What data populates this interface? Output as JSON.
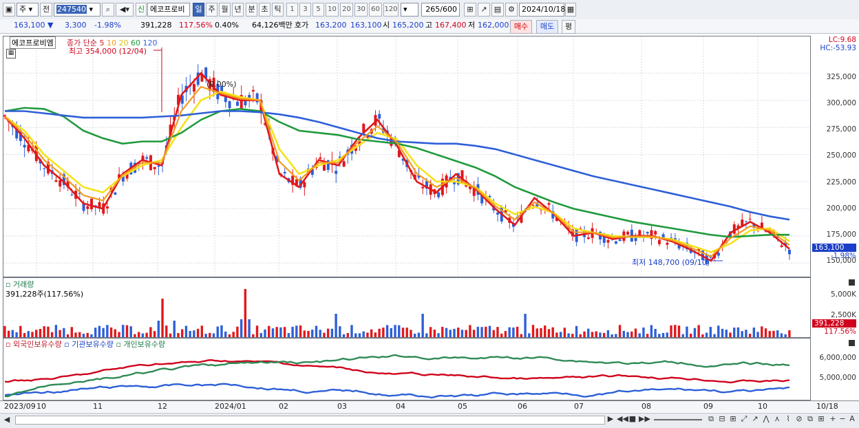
{
  "toolbar": {
    "mode": "주",
    "prev_label": "전",
    "code": "247540",
    "stock_name": "에코프로비",
    "new_badge": "신",
    "period_buttons": [
      "일",
      "주",
      "월",
      "년",
      "분",
      "초",
      "틱"
    ],
    "active_period": "일",
    "interval_buttons": [
      "1",
      "3",
      "5",
      "10",
      "20",
      "30",
      "60",
      "120"
    ],
    "count": "265",
    "count_max": "/600",
    "date": "2024/10/18"
  },
  "quote": {
    "price": "163,100",
    "change": "3,300",
    "change_pct": "-1.98%",
    "volume": "391,228",
    "volume_ratio": "117.56%",
    "turnover": "0.40%",
    "amount": "64,126백만",
    "bid_label": "호가",
    "ask": "163,200",
    "bid": "163,100",
    "open_label": "시",
    "open": "165,200",
    "high_label": "고",
    "high": "167,400",
    "low_label": "저",
    "low": "162,000",
    "buy_button": "매수",
    "sell_button": "매도",
    "flat_button": "평"
  },
  "price_pane": {
    "title": "에코프로비엠",
    "legend": {
      "close": "종가 단순",
      "ma5": "5",
      "ma10": "10",
      "ma20": "20",
      "ma60": "60",
      "ma120": "120"
    },
    "max_note": "최고 354,000 (12/04)",
    "min_note": "최저 148,700 (09/10)",
    "cap_note": "(0.00%)",
    "lc": "LC:9.68",
    "hc": "HC:-53.93",
    "y_ticks": [
      "325,000",
      "300,000",
      "275,000",
      "250,000",
      "225,000",
      "200,000",
      "175,000",
      "150,000"
    ],
    "last_price": "163,100",
    "last_pct": "-1.98%"
  },
  "volume_pane": {
    "title": "거래량",
    "value": "391,228주(117.56%)",
    "y_ticks": [
      "5,000K",
      "2,500K"
    ],
    "last_volume": "391,228",
    "last_pct": "117.56%"
  },
  "holdings_pane": {
    "legend": [
      "외국인보유수량",
      "기관보유수량",
      "개인보유수량"
    ],
    "y_ticks": [
      "6,000,000",
      "5,000,000"
    ]
  },
  "x_axis": {
    "labels": [
      "2023/09",
      "10",
      "11",
      "12",
      "2024/01",
      "02",
      "03",
      "04",
      "05",
      "06",
      "07",
      "08",
      "09",
      "10",
      "10/18"
    ]
  },
  "colors": {
    "ma5": "#e0181b",
    "ma10": "#f39a1f",
    "ma20": "#f5e21a",
    "ma60": "#1f9a3c",
    "ma120": "#2d5fd8",
    "up": "#e0181b",
    "down": "#2d5fd8"
  },
  "chart_data": [
    {
      "type": "line",
      "title": "에코프로비엠",
      "ylim": [
        140000,
        355000
      ],
      "series": [
        {
          "name": "5",
          "values": [
            285000,
            265000,
            240000,
            225000,
            205000,
            200000,
            232000,
            245000,
            240000,
            305000,
            325000,
            305000,
            300000,
            300000,
            232000,
            220000,
            245000,
            240000,
            265000,
            282000,
            258000,
            225000,
            215000,
            232000,
            218000,
            200000,
            185000,
            210000,
            195000,
            175000,
            178000,
            172000,
            175000,
            175000,
            170000,
            162000,
            152000,
            178000,
            188000,
            178000,
            163000
          ]
        },
        {
          "name": "20",
          "values": [
            285000,
            272000,
            250000,
            235000,
            220000,
            215000,
            230000,
            240000,
            245000,
            275000,
            300000,
            308000,
            303000,
            300000,
            255000,
            232000,
            240000,
            245000,
            258000,
            270000,
            264000,
            240000,
            225000,
            225000,
            220000,
            205000,
            195000,
            202000,
            196000,
            182000,
            178000,
            175000,
            174000,
            174000,
            172000,
            166000,
            160000,
            168000,
            180000,
            182000,
            170000
          ]
        },
        {
          "name": "60",
          "values": [
            290000,
            293000,
            292000,
            285000,
            272000,
            265000,
            260000,
            262000,
            262000,
            270000,
            282000,
            290000,
            292000,
            290000,
            280000,
            272000,
            270000,
            268000,
            264000,
            262000,
            260000,
            256000,
            250000,
            244000,
            238000,
            230000,
            220000,
            213000,
            206000,
            200000,
            196000,
            192000,
            188000,
            185000,
            182000,
            179000,
            176000,
            174000,
            175000,
            176000,
            176000
          ]
        },
        {
          "name": "120",
          "values": [
            290000,
            290000,
            288000,
            286000,
            284000,
            284000,
            284000,
            284000,
            285000,
            286000,
            288000,
            290000,
            290000,
            289000,
            287000,
            284000,
            280000,
            275000,
            270000,
            265000,
            262000,
            261000,
            260000,
            260000,
            258000,
            255000,
            250000,
            245000,
            240000,
            235000,
            230000,
            226000,
            222000,
            218000,
            214000,
            210000,
            206000,
            202000,
            197000,
            193000,
            190000
          ]
        }
      ]
    }
  ]
}
